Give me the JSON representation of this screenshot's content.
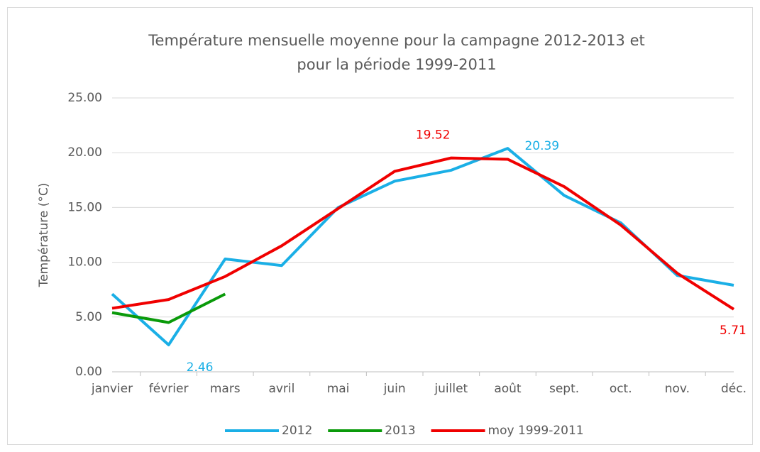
{
  "chart_data": {
    "type": "line",
    "title": [
      "Température mensuelle moyenne pour la campagne 2012-2013 et",
      "pour la période 1999-2011"
    ],
    "y_label": "Température (°C)",
    "categories": [
      "janvier",
      "février",
      "mars",
      "avril",
      "mai",
      "juin",
      "juillet",
      "août",
      "sept.",
      "oct.",
      "nov.",
      "déc."
    ],
    "series": [
      {
        "name": "2012",
        "color": "#1aafe6",
        "values": [
          7.1,
          2.46,
          10.3,
          9.7,
          15.0,
          17.4,
          18.4,
          20.39,
          16.1,
          13.6,
          8.8,
          7.9
        ],
        "value_labels": [
          null,
          "2.46",
          null,
          null,
          null,
          null,
          null,
          "20.39",
          null,
          null,
          null,
          null
        ]
      },
      {
        "name": "2013",
        "color": "#0a9a0a",
        "values": [
          5.4,
          4.5,
          7.1,
          null,
          null,
          null,
          null,
          null,
          null,
          null,
          null,
          null
        ]
      },
      {
        "name": "moy 1999-2011",
        "color": "#f00000",
        "values": [
          5.8,
          6.6,
          8.7,
          11.5,
          14.9,
          18.3,
          19.52,
          19.4,
          16.9,
          13.4,
          9.0,
          5.71
        ],
        "value_labels": [
          null,
          null,
          null,
          null,
          null,
          null,
          "19.52",
          null,
          null,
          null,
          null,
          "5.71"
        ]
      }
    ],
    "ylim": [
      0,
      25
    ],
    "yticks": [
      {
        "value": 0,
        "label": "0.00"
      },
      {
        "value": 5,
        "label": "5.00"
      },
      {
        "value": 10,
        "label": "10.00"
      },
      {
        "value": 15,
        "label": "15.00"
      },
      {
        "value": 20,
        "label": "20.00"
      },
      {
        "value": 25,
        "label": "25.00"
      }
    ],
    "grid": true,
    "legend": "bottom"
  }
}
